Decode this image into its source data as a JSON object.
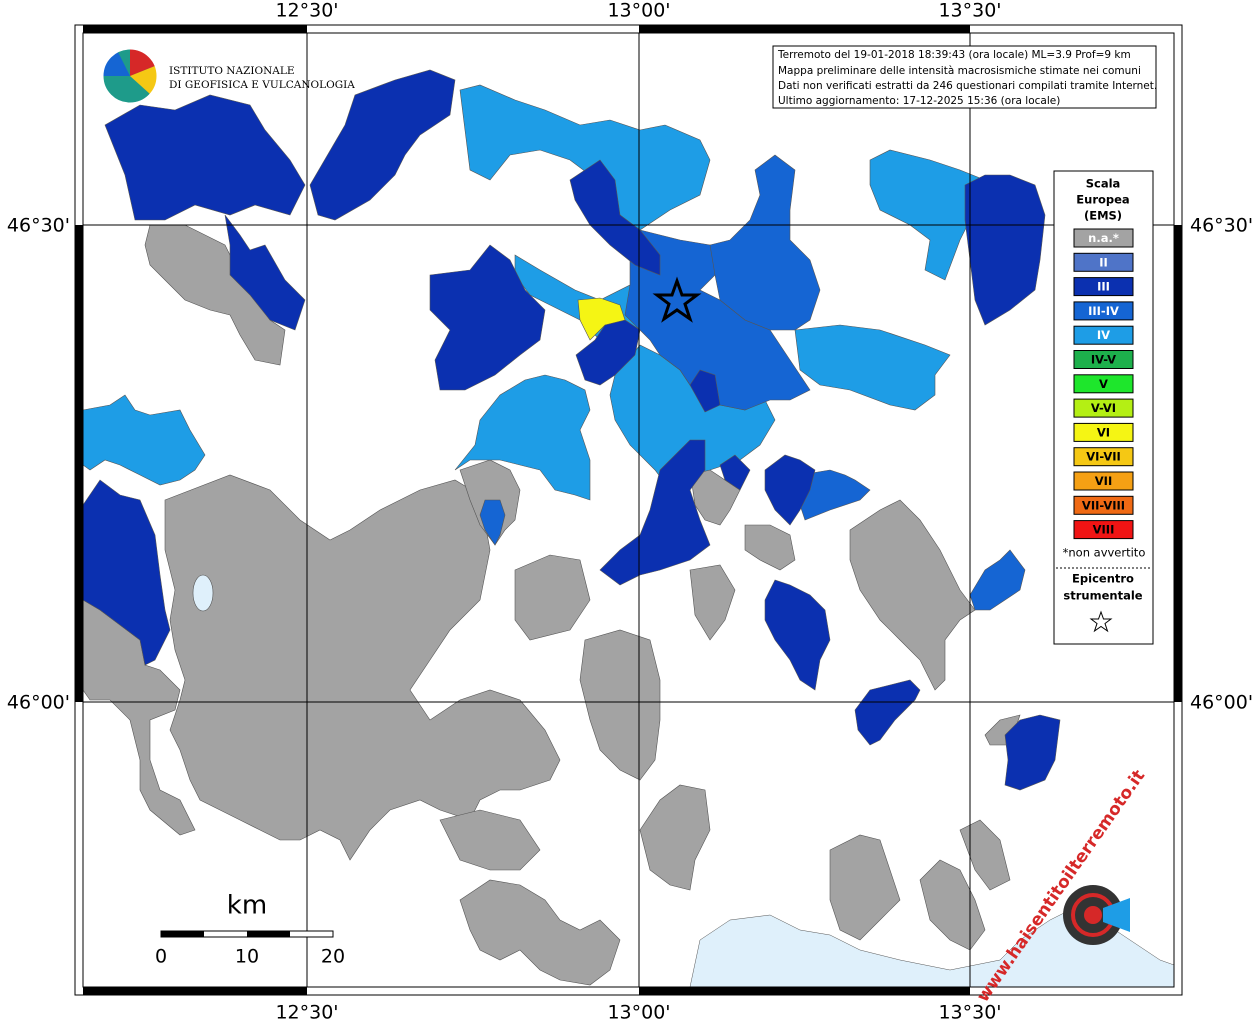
{
  "map": {
    "lon_labels": [
      "12°30'",
      "13°00'",
      "13°30'"
    ],
    "lat_labels": [
      "46°30'",
      "46°00'"
    ],
    "institute": [
      "ISTITUTO NAZIONALE",
      "DI GEOFISICA E VULCANOLOGIA"
    ],
    "info_box": [
      "Terremoto del 19-01-2018 18:39:43 (ora locale) ML=3.9 Prof=9 km",
      "Mappa preliminare delle intensità macrosismiche stimate nei comuni",
      "Dati non verificati estratti da 246 questionari compilati tramite Internet.",
      "Ultimo aggiornamento: 17-12-2025 15:36 (ora locale)"
    ],
    "legend": {
      "title": [
        "Scala",
        "Europea",
        "(EMS)"
      ],
      "items": [
        {
          "label": "n.a.*",
          "color": "#a3a3a3"
        },
        {
          "label": "II",
          "color": "#4f74c8"
        },
        {
          "label": "III",
          "color": "#0b30b0"
        },
        {
          "label": "III-IV",
          "color": "#1565d3"
        },
        {
          "label": "IV",
          "color": "#1e9de6"
        },
        {
          "label": "IV-V",
          "color": "#1db04c"
        },
        {
          "label": "V",
          "color": "#1ee62c"
        },
        {
          "label": "V-VI",
          "color": "#b4ef14"
        },
        {
          "label": "VI",
          "color": "#f5f514"
        },
        {
          "label": "VI-VII",
          "color": "#f5c814"
        },
        {
          "label": "VII",
          "color": "#f5a014"
        },
        {
          "label": "VII-VIII",
          "color": "#f06a14"
        },
        {
          "label": "VIII",
          "color": "#f01414"
        }
      ],
      "note": "*non avvertito",
      "epicenter": [
        "Epicentro",
        "strumentale"
      ]
    },
    "scale": {
      "unit": "km",
      "ticks": [
        0,
        10,
        20
      ]
    },
    "site": "www.haisentitoilterremoto.it"
  }
}
